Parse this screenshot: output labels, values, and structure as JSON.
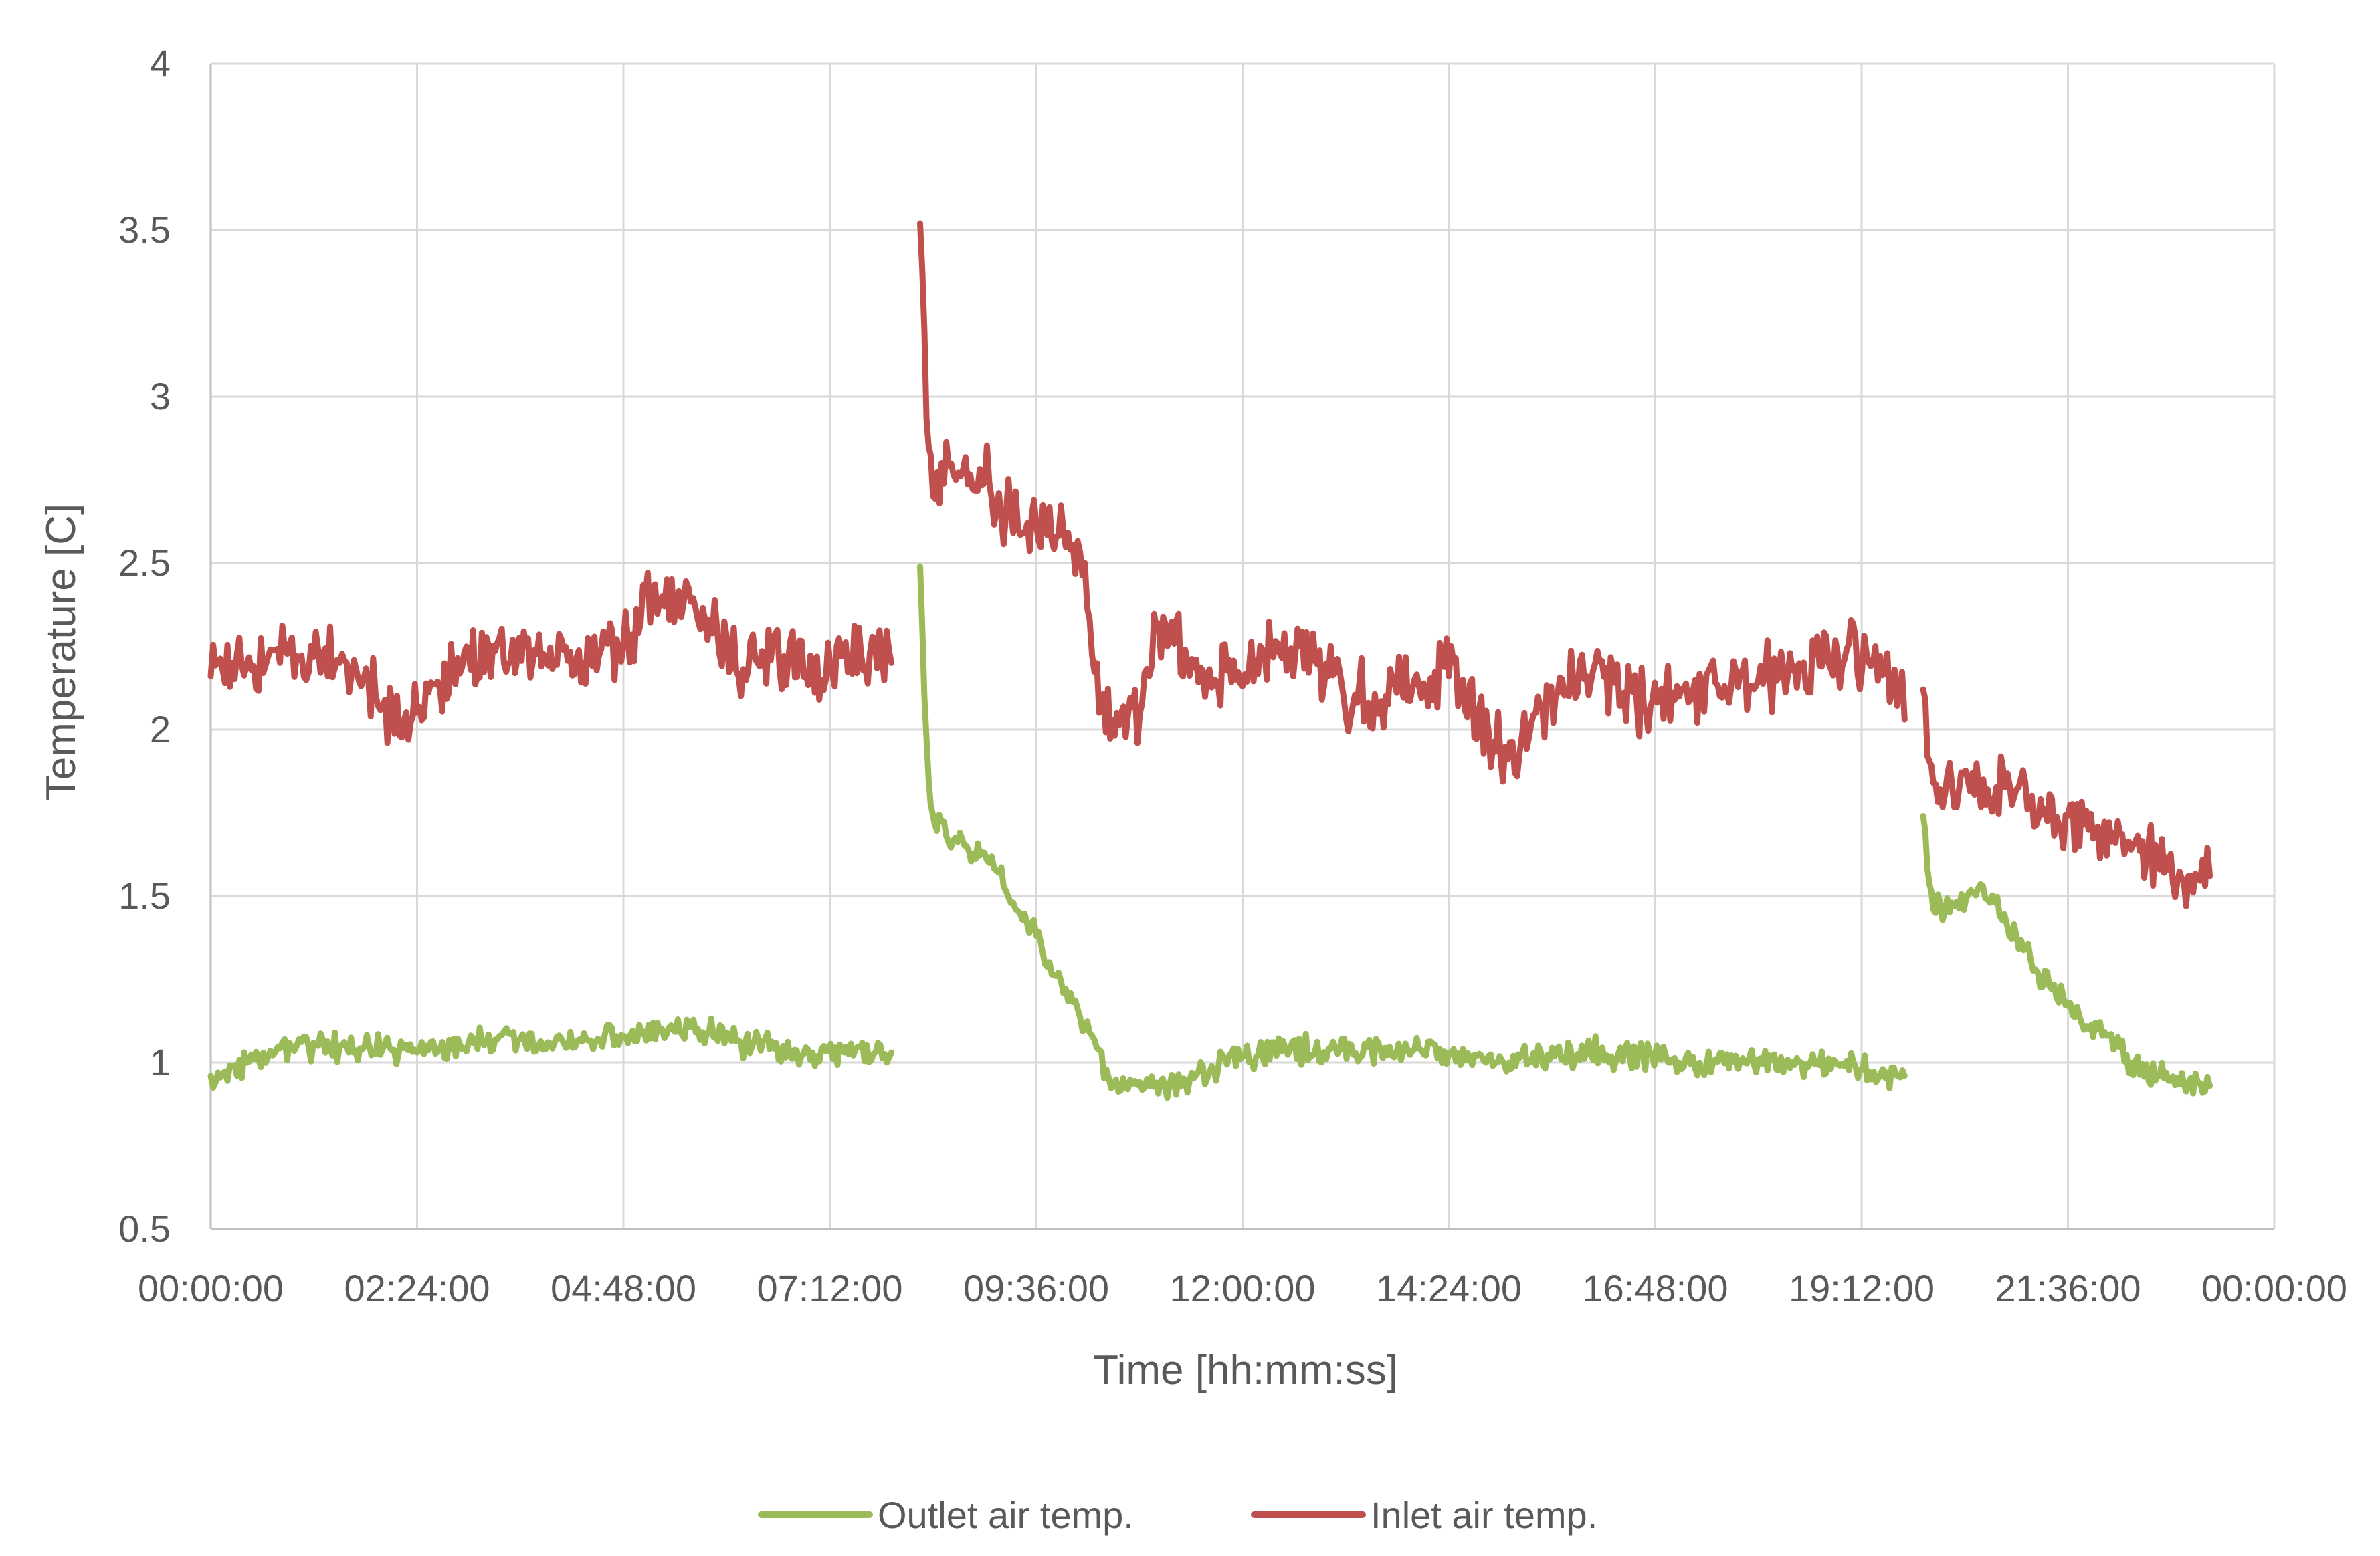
{
  "chart_data": {
    "type": "line",
    "title": "",
    "xlabel": "Time [hh:mm:ss]",
    "ylabel": "Temperature [C]",
    "x_unit": "hh:mm:ss",
    "xlim": [
      "00:00:00",
      "24:00:00"
    ],
    "ylim": [
      0.5,
      4
    ],
    "x_tick_labels": [
      "00:00:00",
      "02:24:00",
      "04:48:00",
      "07:12:00",
      "09:36:00",
      "12:00:00",
      "14:24:00",
      "16:48:00",
      "19:12:00",
      "21:36:00",
      "00:00:00"
    ],
    "y_tick_values": [
      0.5,
      1,
      1.5,
      2,
      2.5,
      3,
      3.5,
      4
    ],
    "y_tick_labels": [
      "0.5",
      "1",
      "1.5",
      "2",
      "2.5",
      "3",
      "3.5",
      "4"
    ],
    "grid": true,
    "legend_position": "bottom",
    "series": [
      {
        "name": "Outlet air temp.",
        "color": "#9BBB59",
        "segments": [
          [
            [
              "00:00:00",
              0.96
            ],
            [
              "00:05:00",
              0.97
            ],
            [
              "00:15:00",
              0.99
            ],
            [
              "00:30:00",
              1.01
            ],
            [
              "00:45:00",
              1.03
            ],
            [
              "01:00:00",
              1.05
            ],
            [
              "01:15:00",
              1.05
            ],
            [
              "01:30:00",
              1.05
            ],
            [
              "02:00:00",
              1.04
            ],
            [
              "02:24:00",
              1.03
            ],
            [
              "02:48:00",
              1.04
            ],
            [
              "03:00:00",
              1.06
            ],
            [
              "03:20:00",
              1.07
            ],
            [
              "03:36:00",
              1.07
            ],
            [
              "04:00:00",
              1.06
            ],
            [
              "04:30:00",
              1.07
            ],
            [
              "04:48:00",
              1.08
            ],
            [
              "05:15:00",
              1.1
            ],
            [
              "05:40:00",
              1.1
            ],
            [
              "06:00:00",
              1.09
            ],
            [
              "06:10:00",
              1.06
            ],
            [
              "06:30:00",
              1.04
            ],
            [
              "07:00:00",
              1.03
            ],
            [
              "07:30:00",
              1.04
            ],
            [
              "07:55:00",
              1.03
            ]
          ],
          [
            [
              "08:15:00",
              2.49
            ],
            [
              "08:18:00",
              2.1
            ],
            [
              "08:21:00",
              1.85
            ],
            [
              "08:25:00",
              1.72
            ],
            [
              "08:35:00",
              1.66
            ],
            [
              "09:00:00",
              1.63
            ],
            [
              "09:10:00",
              1.57
            ],
            [
              "09:20:00",
              1.48
            ],
            [
              "09:36:00",
              1.38
            ],
            [
              "09:50:00",
              1.26
            ],
            [
              "10:05:00",
              1.16
            ],
            [
              "10:15:00",
              1.08
            ],
            [
              "10:25:00",
              0.98
            ],
            [
              "10:40:00",
              0.92
            ],
            [
              "10:55:00",
              0.93
            ],
            [
              "11:20:00",
              0.95
            ],
            [
              "11:40:00",
              0.98
            ],
            [
              "12:00:00",
              1.02
            ],
            [
              "12:30:00",
              1.04
            ],
            [
              "13:00:00",
              1.04
            ],
            [
              "13:30:00",
              1.04
            ],
            [
              "14:00:00",
              1.04
            ],
            [
              "14:24:00",
              1.03
            ],
            [
              "14:50:00",
              1.0
            ],
            [
              "15:20:00",
              1.01
            ],
            [
              "16:00:00",
              1.03
            ],
            [
              "16:30:00",
              1.02
            ],
            [
              "17:00:00",
              1.01
            ],
            [
              "17:30:00",
              1.01
            ],
            [
              "18:00:00",
              1.01
            ],
            [
              "18:30:00",
              1.0
            ],
            [
              "19:00:00",
              0.99
            ],
            [
              "19:30:00",
              0.97
            ],
            [
              "19:42:00",
              0.96
            ]
          ],
          [
            [
              "19:55:00",
              1.74
            ],
            [
              "19:58:00",
              1.58
            ],
            [
              "20:02:00",
              1.46
            ],
            [
              "20:15:00",
              1.48
            ],
            [
              "20:30:00",
              1.51
            ],
            [
              "20:45:00",
              1.48
            ],
            [
              "21:00:00",
              1.38
            ],
            [
              "21:15:00",
              1.27
            ],
            [
              "21:36:00",
              1.17
            ],
            [
              "22:00:00",
              1.08
            ],
            [
              "22:20:00",
              1.0
            ],
            [
              "22:40:00",
              0.96
            ],
            [
              "23:00:00",
              0.94
            ],
            [
              "23:15:00",
              0.93
            ]
          ]
        ]
      },
      {
        "name": "Inlet air temp.",
        "color": "#C0504D",
        "segments": [
          [
            [
              "00:00:00",
              2.16
            ],
            [
              "00:15:00",
              2.2
            ],
            [
              "00:30:00",
              2.19
            ],
            [
              "00:45:00",
              2.24
            ],
            [
              "01:00:00",
              2.22
            ],
            [
              "01:15:00",
              2.24
            ],
            [
              "01:30:00",
              2.2
            ],
            [
              "01:45:00",
              2.13
            ],
            [
              "02:00:00",
              2.07
            ],
            [
              "02:15:00",
              2.03
            ],
            [
              "02:24:00",
              2.05
            ],
            [
              "02:40:00",
              2.12
            ],
            [
              "03:00:00",
              2.22
            ],
            [
              "03:20:00",
              2.26
            ],
            [
              "03:40:00",
              2.25
            ],
            [
              "04:00:00",
              2.21
            ],
            [
              "04:20:00",
              2.2
            ],
            [
              "04:48:00",
              2.26
            ],
            [
              "05:00:00",
              2.32
            ],
            [
              "05:15:00",
              2.4
            ],
            [
              "05:30:00",
              2.38
            ],
            [
              "05:45:00",
              2.33
            ],
            [
              "06:00:00",
              2.28
            ],
            [
              "06:10:00",
              2.1
            ],
            [
              "06:20:00",
              2.21
            ],
            [
              "06:40:00",
              2.22
            ],
            [
              "07:00:00",
              2.21
            ],
            [
              "07:20:00",
              2.22
            ],
            [
              "07:40:00",
              2.23
            ],
            [
              "07:55:00",
              2.2
            ]
          ],
          [
            [
              "08:15:00",
              3.52
            ],
            [
              "08:18:00",
              3.2
            ],
            [
              "08:21:00",
              2.85
            ],
            [
              "08:24:00",
              2.7
            ],
            [
              "08:30:00",
              2.8
            ],
            [
              "08:45:00",
              2.78
            ],
            [
              "09:00:00",
              2.74
            ],
            [
              "09:15:00",
              2.65
            ],
            [
              "09:30:00",
              2.62
            ],
            [
              "09:36:00",
              2.62
            ],
            [
              "09:50:00",
              2.58
            ],
            [
              "10:00:00",
              2.54
            ],
            [
              "10:10:00",
              2.5
            ],
            [
              "10:20:00",
              2.05
            ],
            [
              "10:40:00",
              2.04
            ],
            [
              "10:50:00",
              2.08
            ],
            [
              "11:00:00",
              2.3
            ],
            [
              "11:20:00",
              2.24
            ],
            [
              "11:40:00",
              2.15
            ],
            [
              "12:00:00",
              2.13
            ],
            [
              "12:20:00",
              2.22
            ],
            [
              "12:40:00",
              2.25
            ],
            [
              "13:00:00",
              2.16
            ],
            [
              "13:20:00",
              2.08
            ],
            [
              "13:40:00",
              2.1
            ],
            [
              "14:00:00",
              2.15
            ],
            [
              "14:24:00",
              2.16
            ],
            [
              "14:45:00",
              2.06
            ],
            [
              "15:00:00",
              1.92
            ],
            [
              "15:10:00",
              1.87
            ],
            [
              "15:20:00",
              1.98
            ],
            [
              "15:40:00",
              2.11
            ],
            [
              "16:00:00",
              2.16
            ],
            [
              "16:20:00",
              2.14
            ],
            [
              "16:40:00",
              2.07
            ],
            [
              "17:00:00",
              2.11
            ],
            [
              "17:30:00",
              2.14
            ],
            [
              "18:00:00",
              2.15
            ],
            [
              "18:30:00",
              2.18
            ],
            [
              "19:00:00",
              2.21
            ],
            [
              "19:20:00",
              2.2
            ],
            [
              "19:35:00",
              2.18
            ],
            [
              "19:42:00",
              2.03
            ]
          ],
          [
            [
              "19:55:00",
              2.12
            ],
            [
              "19:58:00",
              1.92
            ],
            [
              "20:02:00",
              1.84
            ],
            [
              "20:20:00",
              1.82
            ],
            [
              "20:40:00",
              1.82
            ],
            [
              "21:00:00",
              1.82
            ],
            [
              "21:20:00",
              1.76
            ],
            [
              "21:36:00",
              1.74
            ],
            [
              "22:00:00",
              1.68
            ],
            [
              "22:20:00",
              1.64
            ],
            [
              "22:40:00",
              1.58
            ],
            [
              "23:00:00",
              1.56
            ],
            [
              "23:15:00",
              1.56
            ]
          ]
        ]
      }
    ]
  }
}
